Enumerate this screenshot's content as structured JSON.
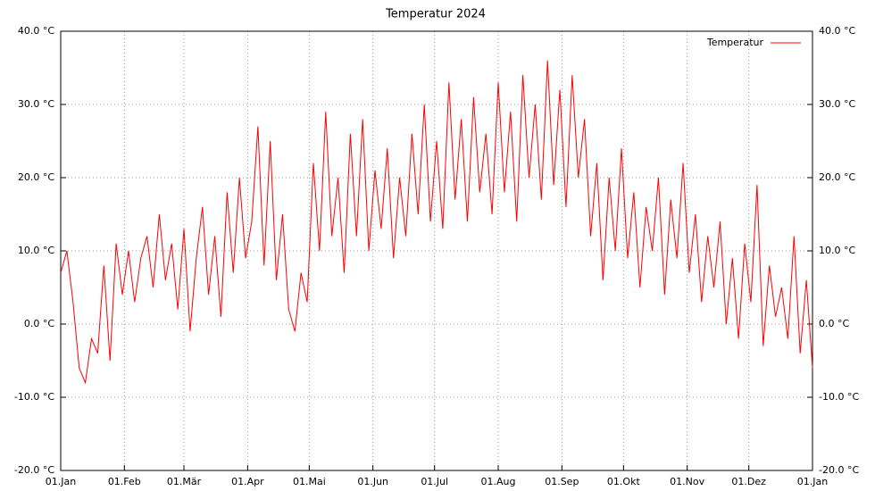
{
  "chart_data": {
    "type": "line",
    "title": "Temperatur 2024",
    "x": [
      0,
      3,
      6,
      9,
      12,
      15,
      18,
      21,
      24,
      27,
      30,
      33,
      36,
      39,
      42,
      45,
      48,
      51,
      54,
      57,
      60,
      63,
      66,
      69,
      72,
      75,
      78,
      81,
      84,
      87,
      90,
      93,
      96,
      99,
      102,
      105,
      108,
      111,
      114,
      117,
      120,
      123,
      126,
      129,
      132,
      135,
      138,
      141,
      144,
      147,
      150,
      153,
      156,
      159,
      162,
      165,
      168,
      171,
      174,
      177,
      180,
      183,
      186,
      189,
      192,
      195,
      198,
      201,
      204,
      207,
      210,
      213,
      216,
      219,
      222,
      225,
      228,
      231,
      234,
      237,
      240,
      243,
      246,
      249,
      252,
      255,
      258,
      261,
      264,
      267,
      270,
      273,
      276,
      279,
      282,
      285,
      288,
      291,
      294,
      297,
      300,
      303,
      306,
      309,
      312,
      315,
      318,
      321,
      324,
      327,
      330,
      333,
      336,
      339,
      342,
      345,
      348,
      351,
      354,
      357,
      360,
      363,
      366
    ],
    "series": [
      {
        "name": "Temperatur",
        "color": "#ff0000",
        "values": [
          7,
          10,
          3,
          -6,
          -8,
          -2,
          -4,
          8,
          -5,
          11,
          4,
          10,
          3,
          9,
          12,
          5,
          15,
          6,
          11,
          2,
          13,
          -1,
          9,
          16,
          4,
          12,
          1,
          18,
          7,
          20,
          9,
          14,
          27,
          8,
          25,
          6,
          15,
          2,
          -1,
          7,
          3,
          22,
          10,
          29,
          12,
          20,
          7,
          26,
          12,
          28,
          10,
          21,
          13,
          24,
          9,
          20,
          12,
          26,
          15,
          30,
          14,
          25,
          13,
          33,
          17,
          28,
          14,
          31,
          18,
          26,
          15,
          33,
          18,
          29,
          14,
          34,
          20,
          30,
          17,
          36,
          19,
          32,
          16,
          34,
          20,
          28,
          12,
          22,
          6,
          20,
          10,
          24,
          9,
          18,
          5,
          16,
          10,
          20,
          4,
          17,
          9,
          22,
          7,
          15,
          3,
          12,
          5,
          14,
          0,
          9,
          -2,
          11,
          3,
          19,
          -3,
          8,
          1,
          5,
          -2,
          12,
          -4,
          6,
          -6
        ]
      }
    ],
    "xlim": [
      0,
      366
    ],
    "xticks": [
      {
        "value": 0,
        "label": "01.Jan"
      },
      {
        "value": 31,
        "label": "01.Feb"
      },
      {
        "value": 60,
        "label": "01.Mär"
      },
      {
        "value": 91,
        "label": "01.Apr"
      },
      {
        "value": 121,
        "label": "01.Mai"
      },
      {
        "value": 152,
        "label": "01.Jun"
      },
      {
        "value": 182,
        "label": "01.Jul"
      },
      {
        "value": 213,
        "label": "01.Aug"
      },
      {
        "value": 244,
        "label": "01.Sep"
      },
      {
        "value": 274,
        "label": "01.Okt"
      },
      {
        "value": 305,
        "label": "01.Nov"
      },
      {
        "value": 335,
        "label": "01.Dez"
      },
      {
        "value": 366,
        "label": "01.Jan"
      }
    ],
    "ylim": [
      -20,
      40
    ],
    "yticks": [
      {
        "value": -20,
        "label": "-20.0 °C"
      },
      {
        "value": -10,
        "label": "-10.0 °C"
      },
      {
        "value": 0,
        "label": "0.0 °C"
      },
      {
        "value": 10,
        "label": "10.0 °C"
      },
      {
        "value": 20,
        "label": "20.0 °C"
      },
      {
        "value": 30,
        "label": "30.0 °C"
      },
      {
        "value": 40,
        "label": "40.0 °C"
      }
    ],
    "grid": true,
    "legend": "top-right"
  }
}
